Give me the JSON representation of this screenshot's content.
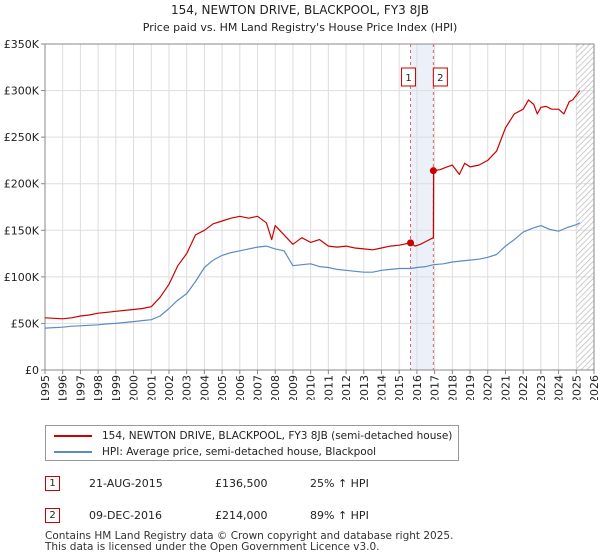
{
  "chart_data": {
    "type": "line",
    "title": "154, NEWTON DRIVE, BLACKPOOL, FY3 8JB",
    "subtitle": "Price paid vs. HM Land Registry's House Price Index (HPI)",
    "xlim": [
      1995,
      2026
    ],
    "ylim": [
      0,
      350000
    ],
    "x_ticks": [
      1995,
      1996,
      1997,
      1998,
      1999,
      2000,
      2001,
      2002,
      2003,
      2004,
      2005,
      2006,
      2007,
      2008,
      2009,
      2010,
      2011,
      2012,
      2013,
      2014,
      2015,
      2016,
      2017,
      2018,
      2019,
      2020,
      2021,
      2022,
      2023,
      2024,
      2025,
      2026
    ],
    "y_ticks": [
      {
        "value": 0,
        "label": "£0"
      },
      {
        "value": 50000,
        "label": "£50K"
      },
      {
        "value": 100000,
        "label": "£100K"
      },
      {
        "value": 150000,
        "label": "£150K"
      },
      {
        "value": 200000,
        "label": "£200K"
      },
      {
        "value": 250000,
        "label": "£250K"
      },
      {
        "value": 300000,
        "label": "£300K"
      },
      {
        "value": 350000,
        "label": "£350K"
      }
    ],
    "grid": true,
    "forecast_from": 2025.0,
    "series": [
      {
        "name": "154, NEWTON DRIVE, BLACKPOOL, FY3 8JB (semi-detached house)",
        "color": "#cc0000",
        "x": [
          1995.0,
          1995.5,
          1996.0,
          1996.5,
          1997.0,
          1997.5,
          1998.0,
          1998.5,
          1999.0,
          1999.5,
          2000.0,
          2000.5,
          2001.0,
          2001.5,
          2002.0,
          2002.5,
          2003.0,
          2003.5,
          2004.0,
          2004.5,
          2005.0,
          2005.5,
          2006.0,
          2006.5,
          2007.0,
          2007.5,
          2007.8,
          2008.0,
          2008.5,
          2009.0,
          2009.5,
          2010.0,
          2010.5,
          2011.0,
          2011.5,
          2012.0,
          2012.5,
          2013.0,
          2013.5,
          2014.0,
          2014.5,
          2015.0,
          2015.64,
          2015.9,
          2016.2,
          2016.5,
          2016.93,
          2016.94,
          2017.3,
          2017.7,
          2018.0,
          2018.4,
          2018.7,
          2019.0,
          2019.5,
          2020.0,
          2020.5,
          2021.0,
          2021.5,
          2022.0,
          2022.3,
          2022.6,
          2022.8,
          2023.0,
          2023.3,
          2023.6,
          2024.0,
          2024.3,
          2024.6,
          2024.8,
          2025.0,
          2025.2
        ],
        "values": [
          56000,
          55500,
          55000,
          56000,
          58000,
          59000,
          61000,
          62000,
          63000,
          64000,
          65000,
          66000,
          68000,
          78000,
          92000,
          112000,
          125000,
          145000,
          150000,
          157000,
          160000,
          163000,
          165000,
          163000,
          165000,
          158000,
          140000,
          155000,
          145000,
          135000,
          142000,
          137000,
          140000,
          133000,
          132000,
          133000,
          131000,
          130000,
          129000,
          131000,
          133000,
          134000,
          136500,
          133000,
          135000,
          138000,
          142000,
          214000,
          215000,
          218000,
          220000,
          210000,
          222000,
          218000,
          220000,
          225000,
          235000,
          260000,
          275000,
          280000,
          290000,
          285000,
          275000,
          282000,
          283000,
          280000,
          280000,
          275000,
          288000,
          290000,
          295000,
          300000
        ]
      },
      {
        "name": "HPI: Average price, semi-detached house, Blackpool",
        "color": "#5b8bc4",
        "x": [
          1995.0,
          1995.5,
          1996.0,
          1996.5,
          1997.0,
          1997.5,
          1998.0,
          1998.5,
          1999.0,
          1999.5,
          2000.0,
          2000.5,
          2001.0,
          2001.5,
          2002.0,
          2002.5,
          2003.0,
          2003.5,
          2004.0,
          2004.5,
          2005.0,
          2005.5,
          2006.0,
          2006.5,
          2007.0,
          2007.5,
          2008.0,
          2008.5,
          2009.0,
          2009.5,
          2010.0,
          2010.5,
          2011.0,
          2011.5,
          2012.0,
          2012.5,
          2013.0,
          2013.5,
          2014.0,
          2014.5,
          2015.0,
          2015.64,
          2016.0,
          2016.5,
          2016.93,
          2017.5,
          2018.0,
          2018.5,
          2019.0,
          2019.5,
          2020.0,
          2020.5,
          2021.0,
          2021.5,
          2022.0,
          2022.5,
          2023.0,
          2023.5,
          2024.0,
          2024.5,
          2025.0,
          2025.2
        ],
        "values": [
          45000,
          45500,
          46000,
          47000,
          47500,
          48000,
          48500,
          49500,
          50000,
          51000,
          52000,
          53000,
          54000,
          58000,
          66000,
          75000,
          82000,
          95000,
          110000,
          118000,
          123000,
          126000,
          128000,
          130000,
          132000,
          133000,
          130000,
          128000,
          112000,
          113000,
          114000,
          111000,
          110000,
          108000,
          107000,
          106000,
          105000,
          105000,
          107000,
          108000,
          109000,
          109000,
          110000,
          111000,
          113000,
          114000,
          116000,
          117000,
          118000,
          119000,
          121000,
          124000,
          133000,
          140000,
          148000,
          152000,
          155000,
          151000,
          149000,
          153000,
          156000,
          158000
        ]
      }
    ],
    "sales": [
      {
        "id": "1",
        "x": 2015.64,
        "price": 136500
      },
      {
        "id": "2",
        "x": 2016.93,
        "price": 214000
      }
    ]
  },
  "legend": {
    "price_paid": "154, NEWTON DRIVE, BLACKPOOL, FY3 8JB (semi-detached house)",
    "hpi": "HPI: Average price, semi-detached house, Blackpool"
  },
  "sales_table": [
    {
      "id": "1",
      "date": "21-AUG-2015",
      "price": "£136,500",
      "hpi": "25% ↑ HPI"
    },
    {
      "id": "2",
      "date": "09-DEC-2016",
      "price": "£214,000",
      "hpi": "89% ↑ HPI"
    }
  ],
  "footer": {
    "line1": "Contains HM Land Registry data © Crown copyright and database right 2025.",
    "line2": "This data is licensed under the Open Government Licence v3.0."
  },
  "colors": {
    "price_line": "#cc0000",
    "hpi_line": "#5b8bc4",
    "grid": "#dddddd",
    "highlight_band": "#dde6f5"
  }
}
